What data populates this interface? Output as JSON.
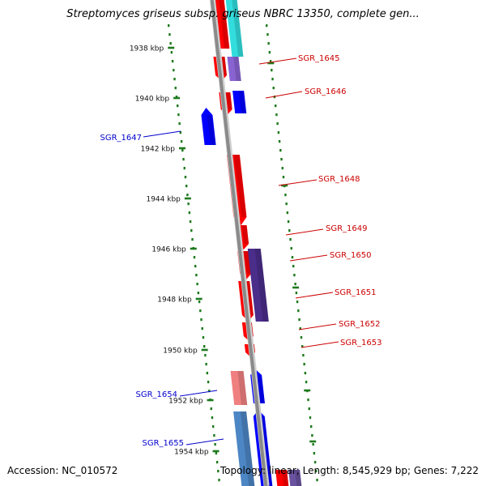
{
  "title": "Streptomyces griseus subsp. griseus NBRC 13350, complete gen...",
  "footer": {
    "accession": "Accession: NC_010572",
    "stats": "Topology: linear; Length: 8,545,929 bp; Genes: 7,222"
  },
  "colors": {
    "backbone": "#8a8a8a",
    "tick": "#1e7a1e",
    "strand_plus": "#ff0000",
    "strand_minus": "#0000ff",
    "label_plus": "#cc0000",
    "label_minus": "#0000cc"
  },
  "scale": {
    "unit": "kbp",
    "ticks": [
      {
        "label": "1938 kbp"
      },
      {
        "label": "1940 kbp"
      },
      {
        "label": "1942 kbp"
      },
      {
        "label": "1944 kbp"
      },
      {
        "label": "1946 kbp"
      },
      {
        "label": "1948 kbp"
      },
      {
        "label": "1950 kbp"
      },
      {
        "label": "1952 kbp"
      },
      {
        "label": "1954 kbp"
      }
    ]
  },
  "genes": [
    {
      "name": "SGR_1645",
      "strand": "plus"
    },
    {
      "name": "SGR_1646",
      "strand": "plus"
    },
    {
      "name": "SGR_1647",
      "strand": "minus"
    },
    {
      "name": "SGR_1648",
      "strand": "plus"
    },
    {
      "name": "SGR_1649",
      "strand": "plus"
    },
    {
      "name": "SGR_1650",
      "strand": "plus"
    },
    {
      "name": "SGR_1651",
      "strand": "plus"
    },
    {
      "name": "SGR_1652",
      "strand": "plus"
    },
    {
      "name": "SGR_1653",
      "strand": "plus"
    },
    {
      "name": "SGR_1654",
      "strand": "minus"
    },
    {
      "name": "SGR_1655",
      "strand": "minus"
    }
  ]
}
